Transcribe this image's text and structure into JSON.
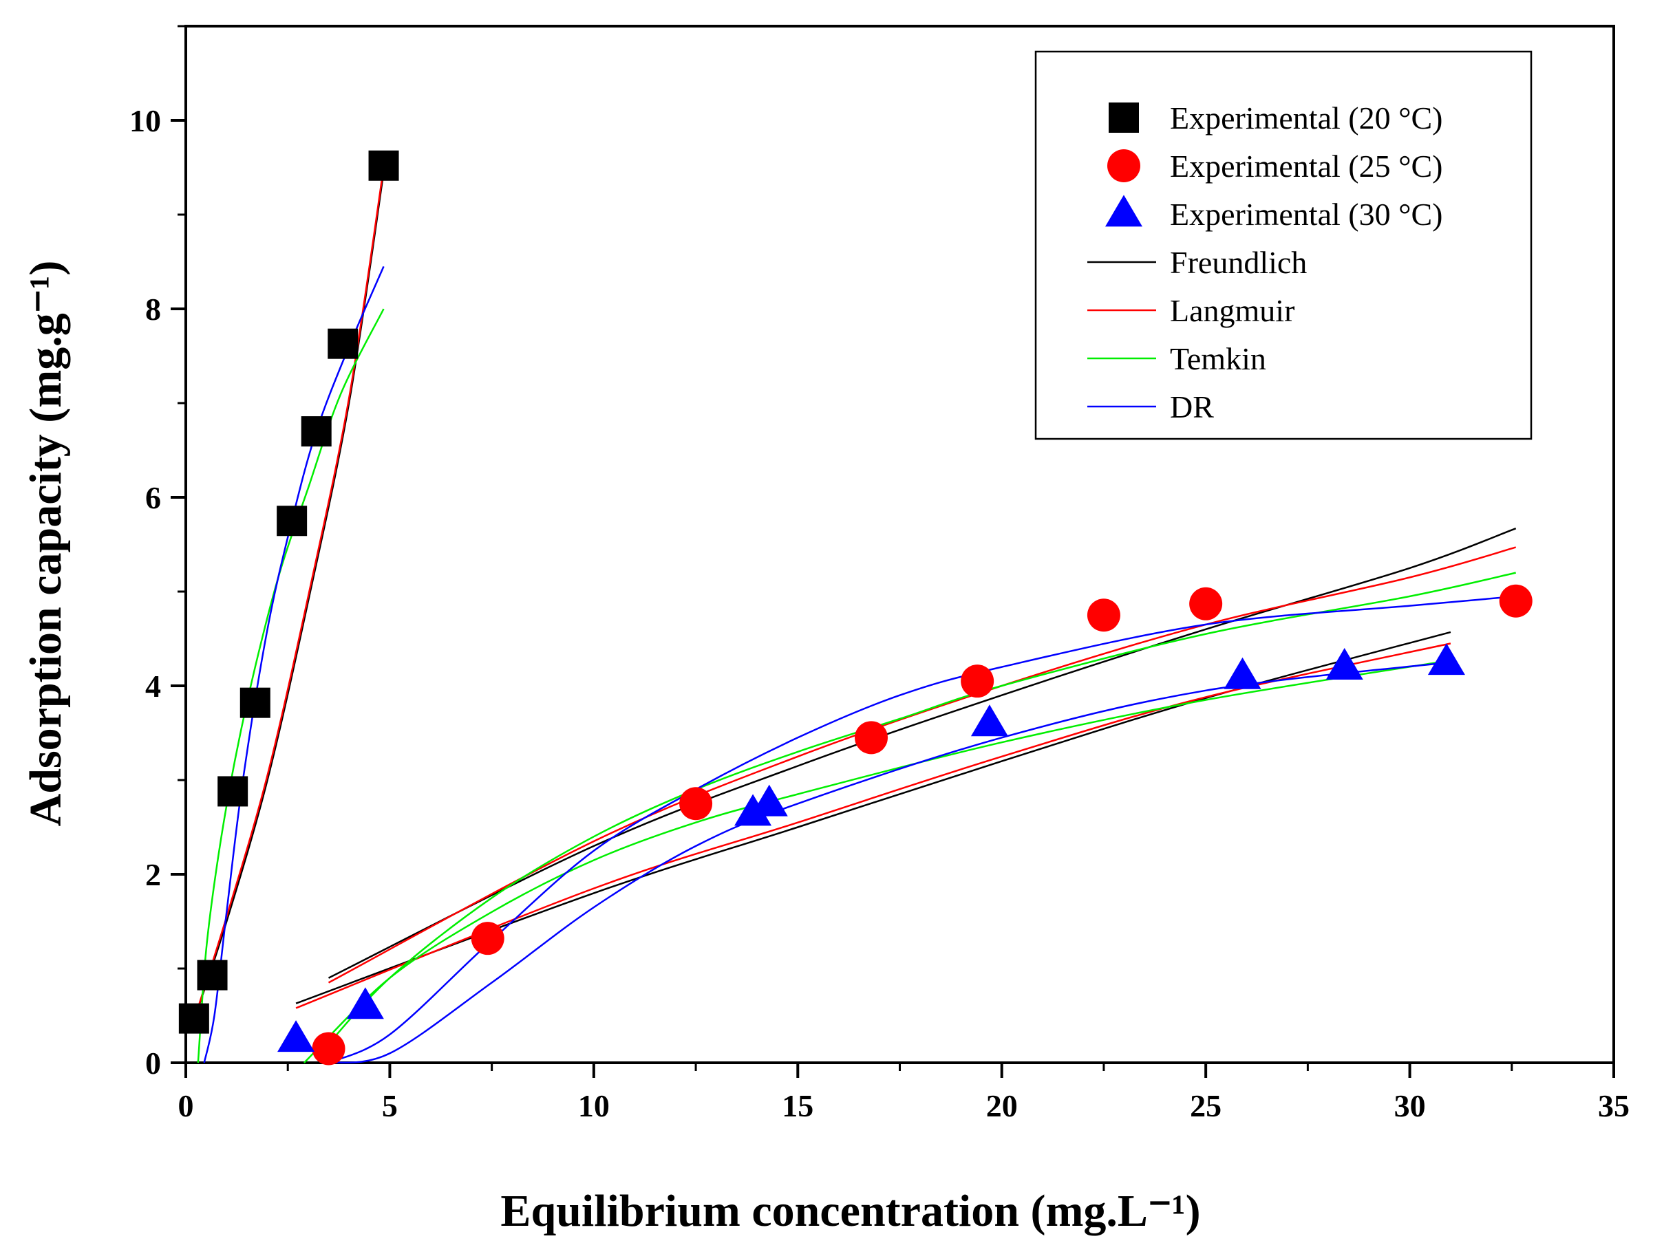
{
  "chart_data": {
    "type": "scatter",
    "xlabel": "Equilibrium concentration (mg.L⁻¹)",
    "ylabel": "Adsorption capacity (mg.g⁻¹)",
    "xlim": [
      0,
      35
    ],
    "ylim": [
      0,
      11
    ],
    "x_ticks": [
      "0",
      "5",
      "10",
      "15",
      "20",
      "25",
      "30",
      "35"
    ],
    "y_ticks": [
      "0",
      "2",
      "4",
      "6",
      "8",
      "10"
    ],
    "grid": false,
    "legend_position": "top-right",
    "series": [
      {
        "name": "Experimental (20 °C)",
        "marker": "square",
        "color": "#000000",
        "points": [
          [
            0.2,
            0.47
          ],
          [
            0.65,
            0.93
          ],
          [
            1.15,
            2.88
          ],
          [
            1.7,
            3.82
          ],
          [
            2.6,
            5.75
          ],
          [
            3.2,
            6.7
          ],
          [
            3.85,
            7.63
          ],
          [
            4.85,
            9.52
          ]
        ]
      },
      {
        "name": "Experimental (25 °C)",
        "marker": "circle",
        "color": "#ff0000",
        "points": [
          [
            3.5,
            0.15
          ],
          [
            7.4,
            1.32
          ],
          [
            12.5,
            2.75
          ],
          [
            16.8,
            3.45
          ],
          [
            19.4,
            4.05
          ],
          [
            22.5,
            4.75
          ],
          [
            25.0,
            4.87
          ],
          [
            32.6,
            4.9
          ]
        ]
      },
      {
        "name": "Experimental (30 °C)",
        "marker": "triangle",
        "color": "#0000ff",
        "points": [
          [
            2.7,
            0.25
          ],
          [
            4.4,
            0.6
          ],
          [
            13.9,
            2.65
          ],
          [
            14.3,
            2.75
          ],
          [
            19.7,
            3.6
          ],
          [
            25.9,
            4.1
          ],
          [
            28.4,
            4.2
          ],
          [
            30.9,
            4.25
          ]
        ]
      }
    ],
    "models": [
      {
        "name": "Freundlich",
        "color": "#000000",
        "curves": [
          [
            [
              0.2,
              0.45
            ],
            [
              1.0,
              1.5
            ],
            [
              2.0,
              3.0
            ],
            [
              3.0,
              4.9
            ],
            [
              4.0,
              7.0
            ],
            [
              4.85,
              9.45
            ]
          ],
          [
            [
              3.5,
              0.9
            ],
            [
              10,
              2.3
            ],
            [
              15,
              3.15
            ],
            [
              20,
              3.9
            ],
            [
              25,
              4.6
            ],
            [
              30,
              5.25
            ],
            [
              32.6,
              5.67
            ]
          ],
          [
            [
              2.7,
              0.63
            ],
            [
              10,
              1.8
            ],
            [
              15,
              2.5
            ],
            [
              20,
              3.2
            ],
            [
              25,
              3.87
            ],
            [
              31,
              4.57
            ]
          ]
        ]
      },
      {
        "name": "Langmuir",
        "color": "#ff0000",
        "curves": [
          [
            [
              0.2,
              0.45
            ],
            [
              1.0,
              1.55
            ],
            [
              2.0,
              3.05
            ],
            [
              3.0,
              4.95
            ],
            [
              4.0,
              7.05
            ],
            [
              4.85,
              9.5
            ]
          ],
          [
            [
              3.5,
              0.85
            ],
            [
              10,
              2.35
            ],
            [
              15,
              3.25
            ],
            [
              20,
              4.0
            ],
            [
              25,
              4.65
            ],
            [
              30,
              5.15
            ],
            [
              32.6,
              5.47
            ]
          ],
          [
            [
              2.7,
              0.58
            ],
            [
              10,
              1.85
            ],
            [
              15,
              2.55
            ],
            [
              20,
              3.25
            ],
            [
              25,
              3.88
            ],
            [
              31,
              4.45
            ]
          ]
        ]
      },
      {
        "name": "Temkin",
        "color": "#00ee00",
        "curves": [
          [
            [
              0.3,
              0.0
            ],
            [
              0.5,
              1.2
            ],
            [
              0.8,
              2.2
            ],
            [
              1.2,
              3.2
            ],
            [
              1.7,
              4.2
            ],
            [
              2.3,
              5.2
            ],
            [
              3.0,
              6.1
            ],
            [
              3.8,
              7.1
            ],
            [
              4.85,
              8.0
            ]
          ],
          [
            [
              3.3,
              0.1
            ],
            [
              5,
              0.9
            ],
            [
              7.5,
              1.75
            ],
            [
              10,
              2.4
            ],
            [
              12.5,
              2.9
            ],
            [
              15,
              3.3
            ],
            [
              17.5,
              3.65
            ],
            [
              20,
              4.0
            ],
            [
              25,
              4.55
            ],
            [
              30,
              4.95
            ],
            [
              32.6,
              5.2
            ]
          ],
          [
            [
              2.9,
              0.0
            ],
            [
              5,
              0.9
            ],
            [
              7.5,
              1.6
            ],
            [
              10,
              2.15
            ],
            [
              12.5,
              2.55
            ],
            [
              15,
              2.85
            ],
            [
              20,
              3.4
            ],
            [
              25,
              3.85
            ],
            [
              31,
              4.27
            ]
          ]
        ]
      },
      {
        "name": "DR",
        "color": "#0000ff",
        "curves": [
          [
            [
              0.45,
              0.0
            ],
            [
              0.7,
              0.5
            ],
            [
              1.0,
              1.6
            ],
            [
              1.4,
              3.0
            ],
            [
              2.0,
              4.6
            ],
            [
              2.6,
              5.75
            ],
            [
              3.2,
              6.7
            ],
            [
              4.0,
              7.6
            ],
            [
              4.85,
              8.45
            ]
          ],
          [
            [
              3.5,
              0.0
            ],
            [
              5,
              0.3
            ],
            [
              7.5,
              1.3
            ],
            [
              10,
              2.25
            ],
            [
              12.5,
              2.9
            ],
            [
              15,
              3.45
            ],
            [
              17.5,
              3.9
            ],
            [
              20,
              4.2
            ],
            [
              25,
              4.65
            ],
            [
              30,
              4.85
            ],
            [
              32.6,
              4.95
            ]
          ],
          [
            [
              3.5,
              0.0
            ],
            [
              5,
              0.1
            ],
            [
              7.5,
              0.85
            ],
            [
              10,
              1.65
            ],
            [
              12.5,
              2.3
            ],
            [
              15,
              2.75
            ],
            [
              20,
              3.45
            ],
            [
              25,
              3.95
            ],
            [
              31,
              4.25
            ]
          ]
        ]
      }
    ],
    "legend": [
      {
        "label": "Experimental (20 °C)",
        "symbol": "square",
        "color": "#000000"
      },
      {
        "label": "Experimental (25 °C)",
        "symbol": "circle",
        "color": "#ff0000"
      },
      {
        "label": "Experimental (30 °C)",
        "symbol": "triangle",
        "color": "#0000ff"
      },
      {
        "label": "Freundlich",
        "symbol": "line",
        "color": "#000000"
      },
      {
        "label": "Langmuir",
        "symbol": "line",
        "color": "#ff0000"
      },
      {
        "label": "Temkin",
        "symbol": "line",
        "color": "#00ee00"
      },
      {
        "label": "DR",
        "symbol": "line",
        "color": "#0000ff"
      }
    ]
  }
}
